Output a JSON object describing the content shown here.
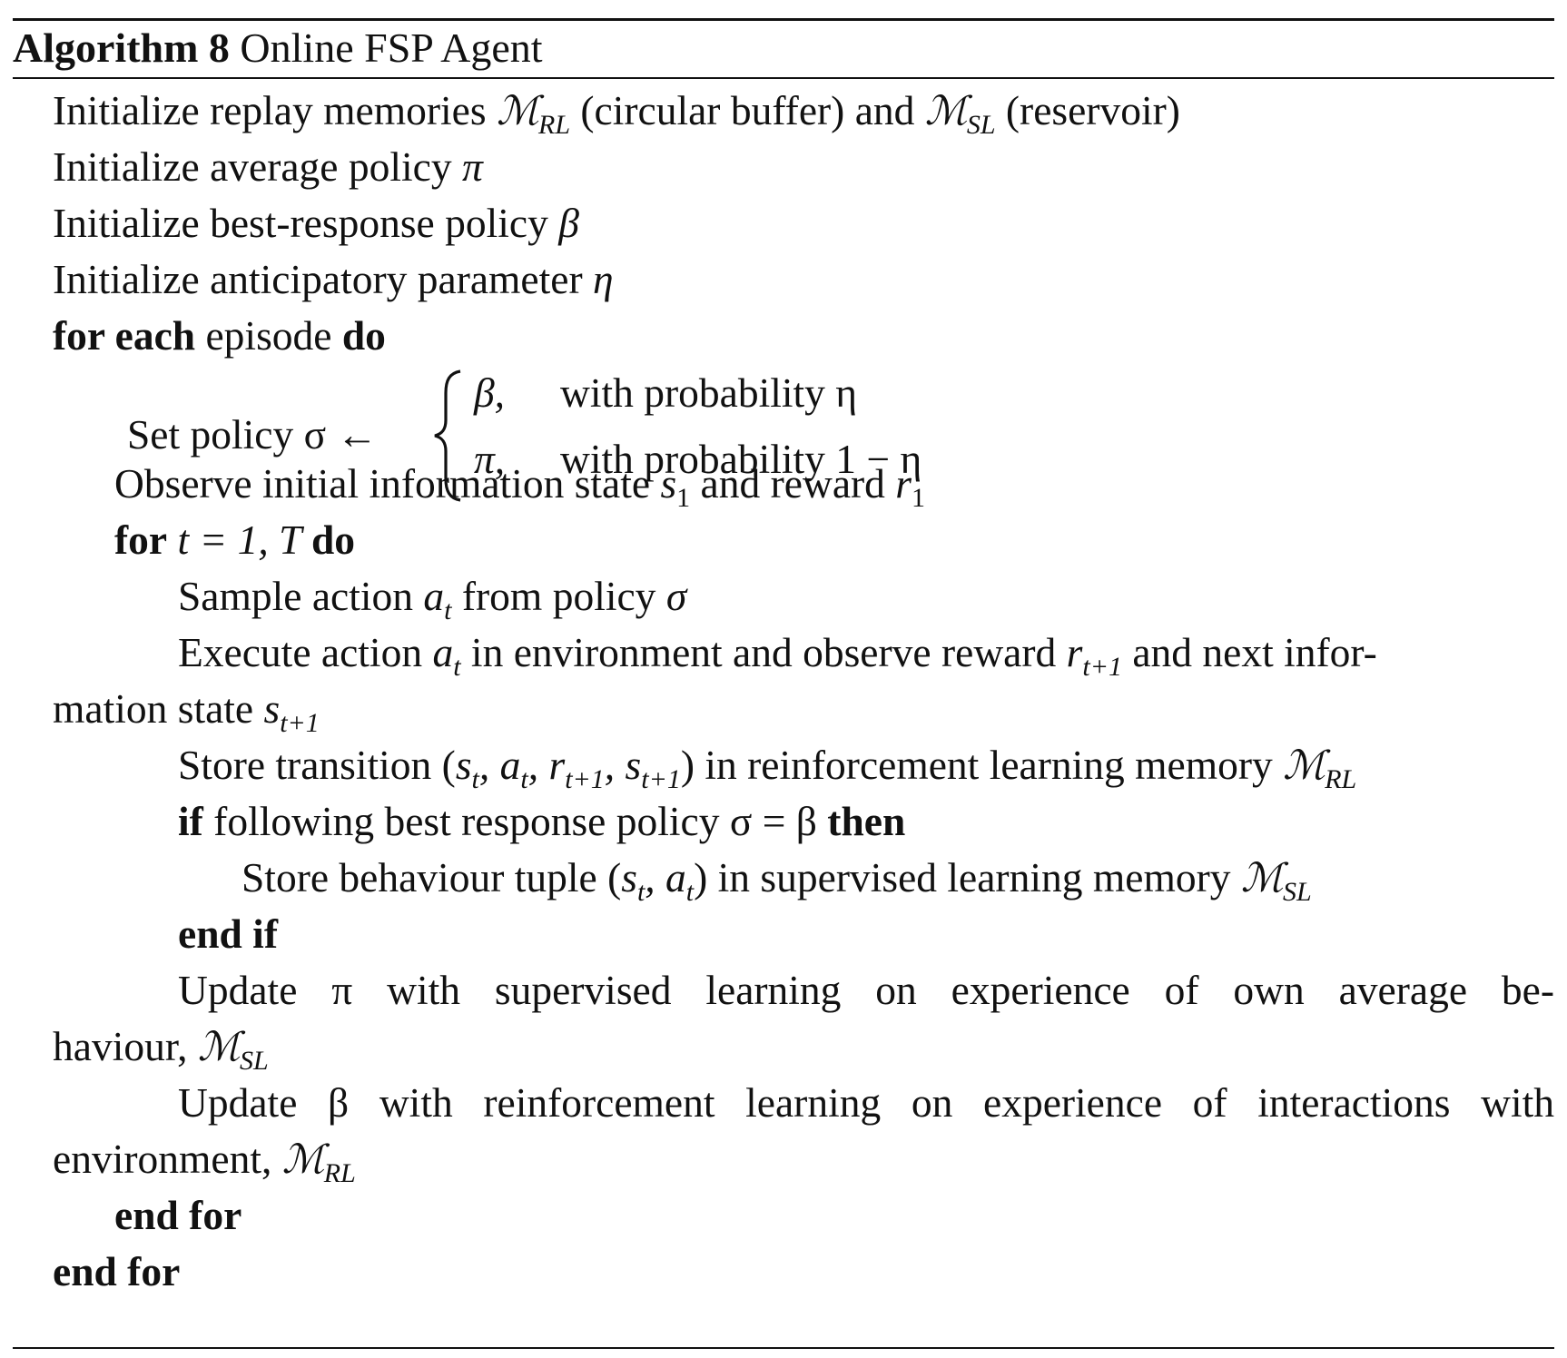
{
  "caption": {
    "label": "Algorithm 8",
    "title": "Online FSP Agent"
  },
  "lines": {
    "l1": {
      "a": "Initialize replay memories ",
      "m1": "ℳ",
      "m1s": "RL",
      "b": " (circular buffer) and ",
      "m2": "ℳ",
      "m2s": "SL",
      "c": " (reservoir)"
    },
    "l2": {
      "a": "Initialize average policy ",
      "sym": "π"
    },
    "l3": {
      "a": "Initialize best-response policy ",
      "sym": "β"
    },
    "l4": {
      "a": "Initialize anticipatory parameter ",
      "sym": "η"
    },
    "l5": {
      "kw1": "for each",
      "a": " episode ",
      "kw2": "do"
    },
    "l6": {
      "label": "Set policy σ ←",
      "case1_sym": "β,",
      "case1_txt": "with probability η",
      "case2_sym": "π,",
      "case2_txt": "with probability 1 − η"
    },
    "l7": {
      "a": "Observe initial information state ",
      "s": "s",
      "ss": "1",
      "b": " and reward ",
      "r": "r",
      "rs": "1"
    },
    "l8": {
      "kw1": "for",
      "a": " t = 1, T ",
      "kw2": "do"
    },
    "l9": {
      "a": "Sample action ",
      "v": "a",
      "vs": "t",
      "b": " from policy ",
      "sym": "σ"
    },
    "l10": {
      "a": "Execute action ",
      "v": "a",
      "vs": "t",
      "b": " in environment and observe reward ",
      "r": "r",
      "rs": "t+1",
      "c": " and next infor-"
    },
    "l11": {
      "a": "mation state ",
      "s": "s",
      "ss": "t+1"
    },
    "l12": {
      "a": "Store transition (",
      "t1": "s",
      "t1s": "t",
      "t2": ", a",
      "t2s": "t",
      "t3": ", r",
      "t3s": "t+1",
      "t4": ", s",
      "t4s": "t+1",
      "b": ") in reinforcement learning memory ",
      "m": "ℳ",
      "ms": "RL"
    },
    "l13": {
      "kw1": "if",
      "a": " following best response policy σ = β ",
      "kw2": "then"
    },
    "l14": {
      "a": "Store behaviour tuple (",
      "t1": "s",
      "t1s": "t",
      "t2": ", a",
      "t2s": "t",
      "b": ") in supervised learning memory ",
      "m": "ℳ",
      "ms": "SL"
    },
    "l15": {
      "kw": "end if"
    },
    "l16": {
      "text": "Update π with supervised learning on experience of own average be-"
    },
    "l17": {
      "a": "haviour, ",
      "m": "ℳ",
      "ms": "SL"
    },
    "l18": {
      "text": "Update β with reinforcement learning on experience of interactions with"
    },
    "l19": {
      "a": "environment, ",
      "m": "ℳ",
      "ms": "RL"
    },
    "l20": {
      "kw": "end for"
    },
    "l21": {
      "kw": "end for"
    }
  }
}
